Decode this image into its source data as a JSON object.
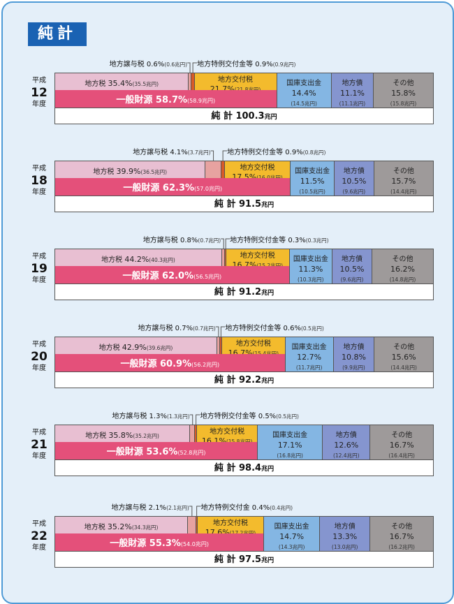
{
  "title": "純計",
  "colors": {
    "local_tax": "#e8bfd2",
    "transfer_tax": "#e7a2a0",
    "special_grant": "#d85a28",
    "allocation_tax": "#f3bb2d",
    "treasury": "#84b6e3",
    "local_bond": "#8595cf",
    "other": "#9e9a9a",
    "general_revenue": "#e4507a"
  },
  "labels": {
    "local_tax": "地方税",
    "allocation_tax": "地方交付税",
    "treasury": "国庫支出金",
    "local_bond": "地方債",
    "other": "その他",
    "general_revenue": "一般財源",
    "total": "純 計",
    "unit": "兆円",
    "era_prefix": "平成",
    "era_suffix": "年度"
  },
  "chart_data": [
    {
      "type": "bar",
      "year": "12",
      "total": "100.3",
      "general": {
        "pct": "58.7%",
        "amt": "(58.9兆円)"
      },
      "segments": [
        {
          "key": "local_tax",
          "pct": "35.4%",
          "amt": "(35.5兆円)"
        },
        {
          "key": "transfer_tax",
          "label": "地方譲与税",
          "pct": "0.6%",
          "amt": "(0.6兆円)"
        },
        {
          "key": "special_grant",
          "label": "地方特例交付金等",
          "pct": "0.9%",
          "amt": "(0.9兆円)"
        },
        {
          "key": "allocation_tax",
          "pct": "21.7%",
          "amt": "(21.8兆円)"
        },
        {
          "key": "treasury",
          "pct": "14.4%",
          "amt": "(14.5兆円)"
        },
        {
          "key": "local_bond",
          "pct": "11.1%",
          "amt": "(11.1兆円)"
        },
        {
          "key": "other",
          "pct": "15.8%",
          "amt": "(15.8兆円)"
        }
      ]
    },
    {
      "type": "bar",
      "year": "18",
      "total": "91.5",
      "general": {
        "pct": "62.3%",
        "amt": "(57.0兆円)"
      },
      "segments": [
        {
          "key": "local_tax",
          "pct": "39.9%",
          "amt": "(36.5兆円)"
        },
        {
          "key": "transfer_tax",
          "label": "地方譲与税",
          "pct": "4.1%",
          "amt": "(3.7兆円)"
        },
        {
          "key": "special_grant",
          "label": "地方特例交付金等",
          "pct": "0.9%",
          "amt": "(0.8兆円)"
        },
        {
          "key": "allocation_tax",
          "pct": "17.5%",
          "amt": "(16.0兆円)"
        },
        {
          "key": "treasury",
          "pct": "11.5%",
          "amt": "(10.5兆円)"
        },
        {
          "key": "local_bond",
          "pct": "10.5%",
          "amt": "(9.6兆円)"
        },
        {
          "key": "other",
          "pct": "15.7%",
          "amt": "(14.4兆円)"
        }
      ]
    },
    {
      "type": "bar",
      "year": "19",
      "total": "91.2",
      "general": {
        "pct": "62.0%",
        "amt": "(56.5兆円)"
      },
      "segments": [
        {
          "key": "local_tax",
          "pct": "44.2%",
          "amt": "(40.3兆円)"
        },
        {
          "key": "transfer_tax",
          "label": "地方譲与税",
          "pct": "0.8%",
          "amt": "(0.7兆円)"
        },
        {
          "key": "special_grant",
          "label": "地方特例交付金等",
          "pct": "0.3%",
          "amt": "(0.3兆円)"
        },
        {
          "key": "allocation_tax",
          "pct": "16.7%",
          "amt": "(15.2兆円)"
        },
        {
          "key": "treasury",
          "pct": "11.3%",
          "amt": "(10.3兆円)"
        },
        {
          "key": "local_bond",
          "pct": "10.5%",
          "amt": "(9.6兆円)"
        },
        {
          "key": "other",
          "pct": "16.2%",
          "amt": "(14.8兆円)"
        }
      ]
    },
    {
      "type": "bar",
      "year": "20",
      "total": "92.2",
      "general": {
        "pct": "60.9%",
        "amt": "(56.2兆円)"
      },
      "segments": [
        {
          "key": "local_tax",
          "pct": "42.9%",
          "amt": "(39.6兆円)"
        },
        {
          "key": "transfer_tax",
          "label": "地方譲与税",
          "pct": "0.7%",
          "amt": "(0.7兆円)"
        },
        {
          "key": "special_grant",
          "label": "地方特例交付金等",
          "pct": "0.6%",
          "amt": "(0.5兆円)"
        },
        {
          "key": "allocation_tax",
          "pct": "16.7%",
          "amt": "(15.4兆円)"
        },
        {
          "key": "treasury",
          "pct": "12.7%",
          "amt": "(11.7兆円)"
        },
        {
          "key": "local_bond",
          "pct": "10.8%",
          "amt": "(9.9兆円)"
        },
        {
          "key": "other",
          "pct": "15.6%",
          "amt": "(14.4兆円)"
        }
      ]
    },
    {
      "type": "bar",
      "year": "21",
      "total": "98.4",
      "general": {
        "pct": "53.6%",
        "amt": "(52.8兆円)"
      },
      "segments": [
        {
          "key": "local_tax",
          "pct": "35.8%",
          "amt": "(35.2兆円)"
        },
        {
          "key": "transfer_tax",
          "label": "地方譲与税",
          "pct": "1.3%",
          "amt": "(1.3兆円)"
        },
        {
          "key": "special_grant",
          "label": "地方特例交付金等",
          "pct": "0.5%",
          "amt": "(0.5兆円)"
        },
        {
          "key": "allocation_tax",
          "pct": "16.1%",
          "amt": "(15.8兆円)"
        },
        {
          "key": "treasury",
          "pct": "17.1%",
          "amt": "(16.8兆円)"
        },
        {
          "key": "local_bond",
          "pct": "12.6%",
          "amt": "(12.4兆円)"
        },
        {
          "key": "other",
          "pct": "16.7%",
          "amt": "(16.4兆円)"
        }
      ]
    },
    {
      "type": "bar",
      "year": "22",
      "total": "97.5",
      "general": {
        "pct": "55.3%",
        "amt": "(54.0兆円)"
      },
      "segments": [
        {
          "key": "local_tax",
          "pct": "35.2%",
          "amt": "(34.3兆円)"
        },
        {
          "key": "transfer_tax",
          "label": "地方譲与税",
          "pct": "2.1%",
          "amt": "(2.1兆円)"
        },
        {
          "key": "special_grant",
          "label": "地方特例交付金",
          "pct": "0.4%",
          "amt": "(0.4兆円)"
        },
        {
          "key": "allocation_tax",
          "pct": "17.6%",
          "amt": "(17.2兆円)"
        },
        {
          "key": "treasury",
          "pct": "14.7%",
          "amt": "(14.3兆円)"
        },
        {
          "key": "local_bond",
          "pct": "13.3%",
          "amt": "(13.0兆円)"
        },
        {
          "key": "other",
          "pct": "16.7%",
          "amt": "(16.2兆円)"
        }
      ]
    }
  ]
}
